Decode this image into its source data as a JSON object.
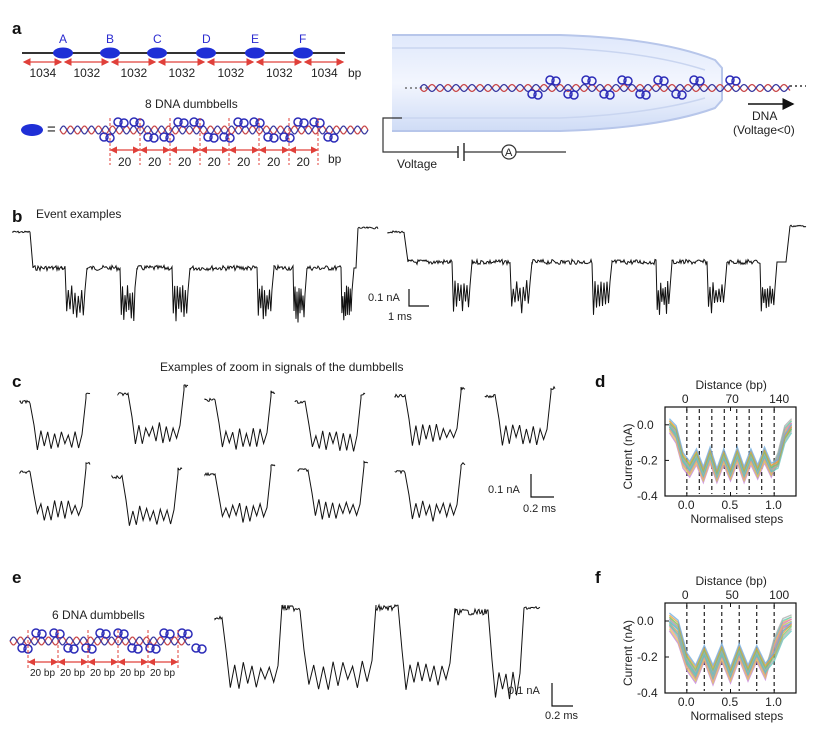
{
  "panels": {
    "a": {
      "label": "a",
      "sites": [
        "A",
        "B",
        "C",
        "D",
        "E",
        "F"
      ],
      "segments": [
        "1034",
        "1032",
        "1032",
        "1032",
        "1032",
        "1032",
        "1034"
      ],
      "unit": "bp",
      "equals": "=",
      "dumbbells_title": "8 DNA dumbbells",
      "spacings": [
        "20",
        "20",
        "20",
        "20",
        "20",
        "20",
        "20"
      ],
      "spacing_unit": "bp",
      "voltage_label": "Voltage",
      "ammeter": "A",
      "dna_label": "DNA",
      "dna_condition": "(Voltage<0)"
    },
    "b": {
      "label": "b",
      "title": "Event examples",
      "scale_current": "0.1 nA",
      "scale_time": "1 ms"
    },
    "c": {
      "label": "c",
      "title": "Examples of zoom in signals of the dumbbells",
      "scale_current": "0.1 nA",
      "scale_time": "0.2 ms"
    },
    "e": {
      "label": "e",
      "dumbbells_title": "6 DNA dumbbells",
      "spacings": [
        "20 bp",
        "20 bp",
        "20 bp",
        "20 bp",
        "20 bp"
      ],
      "scale_current": "0.1 nA",
      "scale_time": "0.2 ms"
    }
  },
  "chart_data": [
    {
      "panel": "d",
      "type": "line",
      "title": "",
      "xlabel": "Normalised steps",
      "ylabel": "Current (nA)",
      "top_axis_label": "Distance (bp)",
      "top_ticks": [
        "0",
        "70",
        "140"
      ],
      "xticks": [
        "0.0",
        "0.5",
        "1.0"
      ],
      "yticks": [
        "0.0",
        "-0.2",
        "-0.4"
      ],
      "xlim": [
        -0.25,
        1.25
      ],
      "ylim": [
        -0.4,
        0.1
      ],
      "dashed_lines_x": [
        0.0,
        0.143,
        0.286,
        0.429,
        0.571,
        0.714,
        0.857,
        1.0
      ],
      "series": [
        {
          "values": [
            0.0,
            -0.05,
            -0.2,
            -0.25,
            -0.18,
            -0.28,
            -0.17,
            -0.29,
            -0.18,
            -0.28,
            -0.17,
            -0.28,
            -0.18,
            -0.27,
            -0.17,
            -0.26,
            -0.2,
            -0.05,
            0.0
          ]
        },
        {
          "values": [
            -0.02,
            -0.08,
            -0.22,
            -0.27,
            -0.2,
            -0.3,
            -0.19,
            -0.3,
            -0.2,
            -0.29,
            -0.19,
            -0.3,
            -0.2,
            -0.28,
            -0.19,
            -0.27,
            -0.18,
            -0.03,
            0.01
          ]
        },
        {
          "values": [
            0.01,
            -0.03,
            -0.18,
            -0.23,
            -0.16,
            -0.26,
            -0.15,
            -0.27,
            -0.16,
            -0.26,
            -0.15,
            -0.26,
            -0.16,
            -0.25,
            -0.15,
            -0.24,
            -0.22,
            -0.08,
            -0.02
          ]
        }
      ]
    },
    {
      "panel": "f",
      "type": "line",
      "title": "",
      "xlabel": "Normalised steps",
      "ylabel": "Current (nA)",
      "top_axis_label": "Distance (bp)",
      "top_ticks": [
        "0",
        "50",
        "100"
      ],
      "xticks": [
        "0.0",
        "0.5",
        "1.0"
      ],
      "yticks": [
        "0.0",
        "-0.2",
        "-0.4"
      ],
      "xlim": [
        -0.25,
        1.25
      ],
      "ylim": [
        -0.4,
        0.1
      ],
      "dashed_lines_x": [
        0.0,
        0.2,
        0.4,
        0.6,
        0.8,
        1.0
      ],
      "series": [
        {
          "values": [
            0.0,
            -0.05,
            -0.22,
            -0.3,
            -0.18,
            -0.3,
            -0.17,
            -0.3,
            -0.17,
            -0.29,
            -0.18,
            -0.28,
            -0.15,
            -0.03,
            0.0
          ]
        },
        {
          "values": [
            -0.03,
            -0.1,
            -0.25,
            -0.32,
            -0.2,
            -0.33,
            -0.2,
            -0.32,
            -0.19,
            -0.31,
            -0.2,
            -0.3,
            -0.12,
            -0.01,
            0.01
          ]
        },
        {
          "values": [
            0.02,
            -0.02,
            -0.2,
            -0.27,
            -0.16,
            -0.27,
            -0.15,
            -0.28,
            -0.15,
            -0.27,
            -0.16,
            -0.26,
            -0.2,
            -0.08,
            -0.03
          ]
        }
      ]
    }
  ]
}
